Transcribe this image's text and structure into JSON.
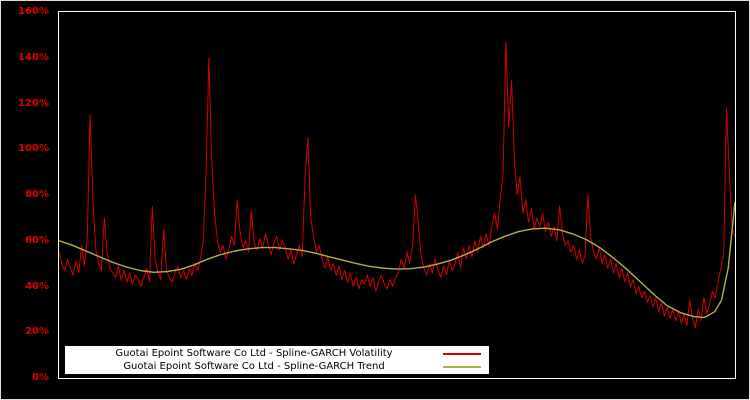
{
  "chart_data": {
    "type": "line",
    "title": "",
    "background": "#000000",
    "plot_border_color": "#ffffff",
    "tick_label_color": "#e00000",
    "grid": false,
    "legend_position": "bottom-inside",
    "ylim": [
      0,
      160
    ],
    "y_unit": "%",
    "y_ticks": [
      {
        "value": 0,
        "label": "0%"
      },
      {
        "value": 20,
        "label": "20%"
      },
      {
        "value": 40,
        "label": "40%"
      },
      {
        "value": 60,
        "label": "60%"
      },
      {
        "value": 80,
        "label": "80%"
      },
      {
        "value": 100,
        "label": "100%"
      },
      {
        "value": 120,
        "label": "120%"
      },
      {
        "value": 140,
        "label": "140%"
      },
      {
        "value": 160,
        "label": "160%"
      }
    ],
    "series": [
      {
        "name": "Guotai Epoint Software Co Ltd - Spline-GARCH Volatility",
        "color": "#d40000",
        "values": [
          55,
          50,
          47,
          52,
          48,
          45,
          51,
          46,
          58,
          49,
          62,
          115,
          78,
          56,
          50,
          47,
          70,
          55,
          48,
          46,
          44,
          49,
          43,
          47,
          42,
          46,
          41,
          45,
          43,
          40,
          44,
          48,
          42,
          75,
          52,
          46,
          43,
          65,
          47,
          44,
          42,
          46,
          49,
          44,
          47,
          43,
          48,
          45,
          50,
          47,
          52,
          60,
          90,
          140,
          95,
          72,
          60,
          55,
          58,
          52,
          56,
          62,
          58,
          78,
          64,
          57,
          60,
          55,
          73,
          59,
          56,
          61,
          57,
          63,
          58,
          54,
          59,
          62,
          56,
          60,
          57,
          52,
          56,
          50,
          54,
          58,
          53,
          88,
          105,
          70,
          62,
          55,
          58,
          52,
          48,
          53,
          47,
          50,
          45,
          49,
          43,
          47,
          42,
          46,
          40,
          44,
          39,
          43,
          41,
          45,
          40,
          44,
          38,
          42,
          45,
          41,
          39,
          43,
          40,
          44,
          46,
          52,
          48,
          55,
          50,
          58,
          80,
          68,
          54,
          48,
          45,
          50,
          46,
          52,
          47,
          44,
          49,
          45,
          51,
          47,
          50,
          55,
          48,
          57,
          52,
          58,
          53,
          60,
          55,
          62,
          57,
          63,
          58,
          66,
          72,
          65,
          78,
          90,
          147,
          110,
          130,
          95,
          80,
          88,
          72,
          78,
          68,
          74,
          65,
          70,
          66,
          72,
          64,
          68,
          62,
          66,
          60,
          75,
          63,
          58,
          60,
          55,
          58,
          52,
          56,
          50,
          54,
          80,
          62,
          55,
          52,
          57,
          50,
          54,
          48,
          52,
          46,
          50,
          44,
          48,
          42,
          46,
          40,
          43,
          37,
          40,
          35,
          38,
          33,
          36,
          31,
          35,
          29,
          33,
          27,
          31,
          26,
          30,
          25,
          29,
          24,
          28,
          23,
          34,
          26,
          22,
          30,
          25,
          35,
          28,
          32,
          38,
          35,
          42,
          48,
          55,
          118,
          90,
          65,
          62
        ]
      },
      {
        "name": "Guotai Epoint Software Co Ltd - Spline-GARCH Trend",
        "color": "#b0b04a",
        "points": [
          [
            0,
            60
          ],
          [
            0.02,
            58
          ],
          [
            0.04,
            55.5
          ],
          [
            0.06,
            53
          ],
          [
            0.08,
            50.5
          ],
          [
            0.1,
            48.5
          ],
          [
            0.12,
            47
          ],
          [
            0.14,
            46.2
          ],
          [
            0.16,
            46.5
          ],
          [
            0.18,
            47.5
          ],
          [
            0.2,
            49.5
          ],
          [
            0.22,
            52
          ],
          [
            0.24,
            54
          ],
          [
            0.26,
            55.5
          ],
          [
            0.28,
            56.5
          ],
          [
            0.3,
            57
          ],
          [
            0.32,
            57
          ],
          [
            0.34,
            56.5
          ],
          [
            0.36,
            55.8
          ],
          [
            0.38,
            54.5
          ],
          [
            0.4,
            53
          ],
          [
            0.42,
            51.5
          ],
          [
            0.44,
            50
          ],
          [
            0.46,
            48.8
          ],
          [
            0.48,
            48
          ],
          [
            0.5,
            47.6
          ],
          [
            0.52,
            47.8
          ],
          [
            0.54,
            48.5
          ],
          [
            0.56,
            49.8
          ],
          [
            0.58,
            51.5
          ],
          [
            0.6,
            53.8
          ],
          [
            0.62,
            56.5
          ],
          [
            0.64,
            59.5
          ],
          [
            0.66,
            62
          ],
          [
            0.68,
            64
          ],
          [
            0.7,
            65.2
          ],
          [
            0.72,
            65.5
          ],
          [
            0.74,
            64.8
          ],
          [
            0.76,
            63
          ],
          [
            0.78,
            60.5
          ],
          [
            0.8,
            57
          ],
          [
            0.82,
            52.5
          ],
          [
            0.84,
            47.5
          ],
          [
            0.86,
            42
          ],
          [
            0.88,
            36.5
          ],
          [
            0.9,
            31.5
          ],
          [
            0.92,
            28.5
          ],
          [
            0.94,
            26.8
          ],
          [
            0.955,
            26.5
          ],
          [
            0.97,
            29
          ],
          [
            0.98,
            34
          ],
          [
            0.99,
            48
          ],
          [
            1,
            77
          ]
        ]
      }
    ]
  }
}
